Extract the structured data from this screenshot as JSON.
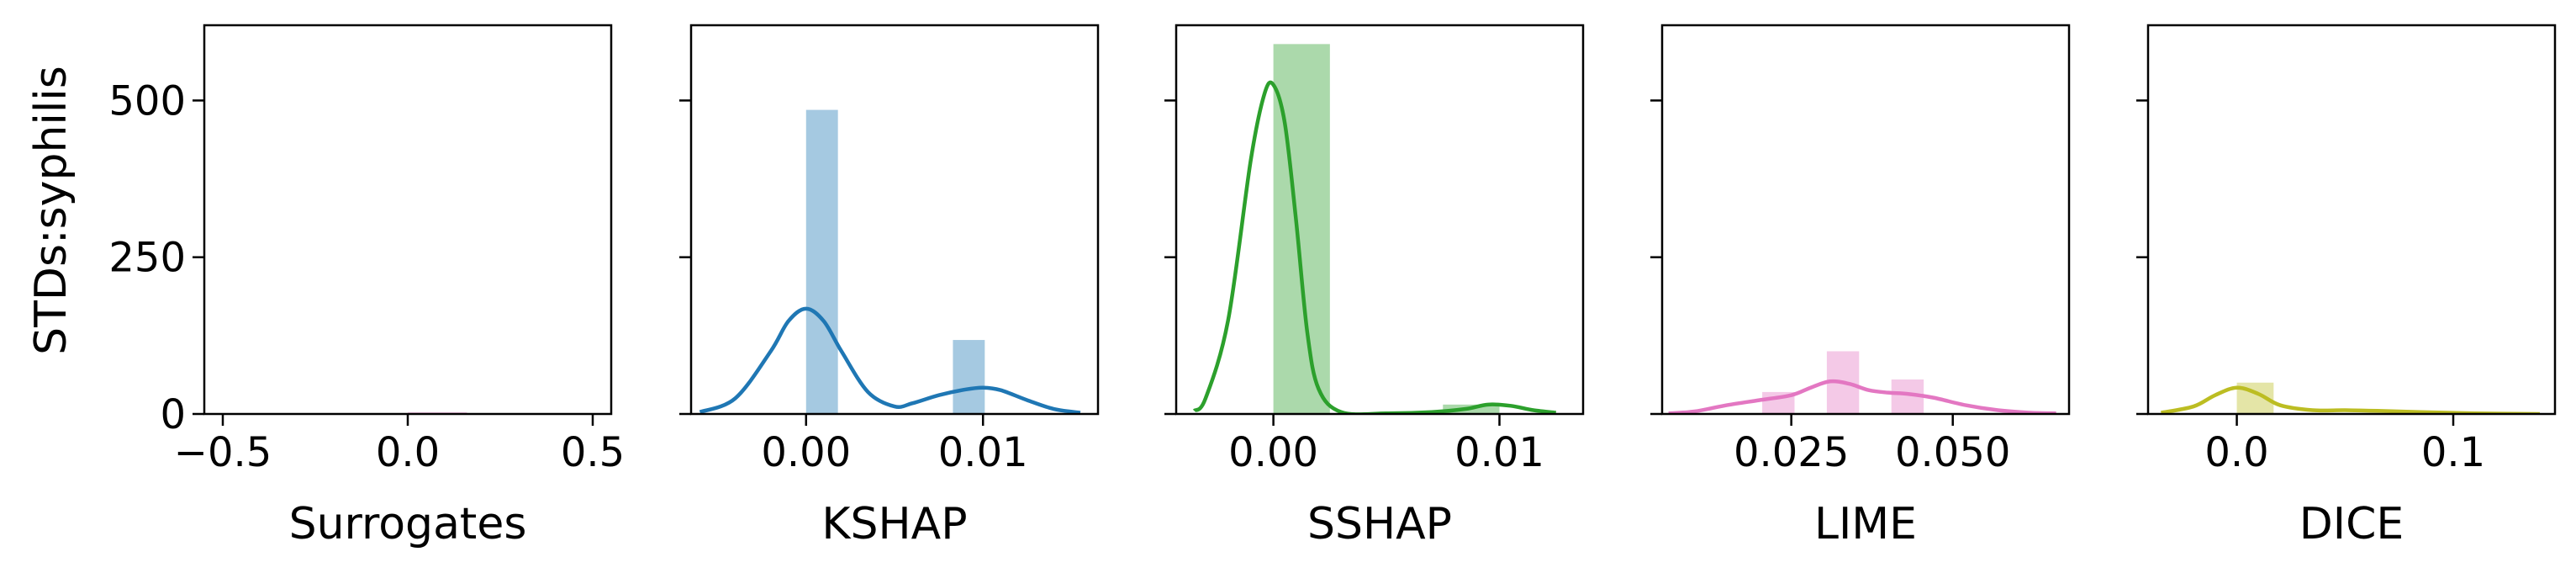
{
  "ylabel": "STDs:syphilis",
  "y_ticks": [
    0,
    250,
    500
  ],
  "ylim": [
    0,
    620
  ],
  "chart_data": [
    {
      "type": "bar",
      "xlabel": "Surrogates",
      "color": "#e377c2",
      "xlim": [
        -0.55,
        0.55
      ],
      "x_ticks": [
        -0.5,
        0.0,
        0.5
      ],
      "x_tick_labels": [
        "−0.5",
        "0.0",
        "0.5"
      ],
      "bars": [
        {
          "x0": 0.0,
          "x1": 0.16,
          "value": 3
        }
      ],
      "kde": []
    },
    {
      "type": "bar",
      "xlabel": "KSHAP",
      "color": "#1f77b4",
      "xlim": [
        -0.0065,
        0.0165
      ],
      "x_ticks": [
        0.0,
        0.01
      ],
      "x_tick_labels": [
        "0.00",
        "0.01"
      ],
      "bars": [
        {
          "x0": 0.0,
          "x1": 0.0018,
          "value": 485
        },
        {
          "x0": 0.0083,
          "x1": 0.0101,
          "value": 118
        }
      ],
      "kde": [
        [
          -0.006,
          3
        ],
        [
          -0.004,
          25
        ],
        [
          -0.002,
          100
        ],
        [
          -0.001,
          148
        ],
        [
          0.0,
          168
        ],
        [
          0.001,
          148
        ],
        [
          0.002,
          100
        ],
        [
          0.0035,
          35
        ],
        [
          0.005,
          12
        ],
        [
          0.006,
          17
        ],
        [
          0.0075,
          30
        ],
        [
          0.009,
          39
        ],
        [
          0.01,
          42
        ],
        [
          0.011,
          38
        ],
        [
          0.0125,
          22
        ],
        [
          0.014,
          8
        ],
        [
          0.0155,
          2
        ]
      ]
    },
    {
      "type": "bar",
      "xlabel": "SSHAP",
      "color": "#2ca02c",
      "xlim": [
        -0.0043,
        0.0137
      ],
      "x_ticks": [
        0.0,
        0.01
      ],
      "x_tick_labels": [
        "0.00",
        "0.01"
      ],
      "bars": [
        {
          "x0": 0.0,
          "x1": 0.0025,
          "value": 590
        },
        {
          "x0": 0.0075,
          "x1": 0.01,
          "value": 15
        }
      ],
      "kde": [
        [
          -0.0035,
          5
        ],
        [
          -0.003,
          25
        ],
        [
          -0.002,
          150
        ],
        [
          -0.001,
          405
        ],
        [
          -0.0004,
          510
        ],
        [
          0.0,
          525
        ],
        [
          0.0005,
          465
        ],
        [
          0.001,
          310
        ],
        [
          0.0015,
          130
        ],
        [
          0.002,
          40
        ],
        [
          0.003,
          3
        ],
        [
          0.005,
          1
        ],
        [
          0.007,
          3
        ],
        [
          0.0085,
          8
        ],
        [
          0.0095,
          15
        ],
        [
          0.0105,
          13
        ],
        [
          0.0115,
          6
        ],
        [
          0.0125,
          2
        ]
      ]
    },
    {
      "type": "bar",
      "xlabel": "LIME",
      "color": "#e377c2",
      "xlim": [
        0.005,
        0.068
      ],
      "x_ticks": [
        0.025,
        0.05
      ],
      "x_tick_labels": [
        "0.025",
        "0.050"
      ],
      "bars": [
        {
          "x0": 0.0205,
          "x1": 0.0255,
          "value": 35
        },
        {
          "x0": 0.0305,
          "x1": 0.0355,
          "value": 100
        },
        {
          "x0": 0.0405,
          "x1": 0.0455,
          "value": 55
        }
      ],
      "kde": [
        [
          0.006,
          1
        ],
        [
          0.01,
          4
        ],
        [
          0.015,
          14
        ],
        [
          0.02,
          22
        ],
        [
          0.025,
          30
        ],
        [
          0.028,
          42
        ],
        [
          0.031,
          52
        ],
        [
          0.034,
          48
        ],
        [
          0.037,
          38
        ],
        [
          0.04,
          34
        ],
        [
          0.043,
          32
        ],
        [
          0.047,
          26
        ],
        [
          0.052,
          14
        ],
        [
          0.057,
          6
        ],
        [
          0.062,
          2
        ],
        [
          0.066,
          1
        ]
      ]
    },
    {
      "type": "bar",
      "xlabel": "DICE",
      "color": "#bcbd22",
      "xlim": [
        -0.041,
        0.147
      ],
      "x_ticks": [
        0.0,
        0.1
      ],
      "x_tick_labels": [
        "0.0",
        "0.1"
      ],
      "bars": [
        {
          "x0": 0.0,
          "x1": 0.017,
          "value": 50
        }
      ],
      "kde": [
        [
          -0.035,
          2
        ],
        [
          -0.02,
          12
        ],
        [
          -0.01,
          30
        ],
        [
          0.0,
          42
        ],
        [
          0.01,
          32
        ],
        [
          0.02,
          14
        ],
        [
          0.035,
          6
        ],
        [
          0.05,
          6
        ],
        [
          0.065,
          5
        ],
        [
          0.085,
          3
        ],
        [
          0.11,
          1
        ],
        [
          0.14,
          0
        ]
      ]
    }
  ]
}
